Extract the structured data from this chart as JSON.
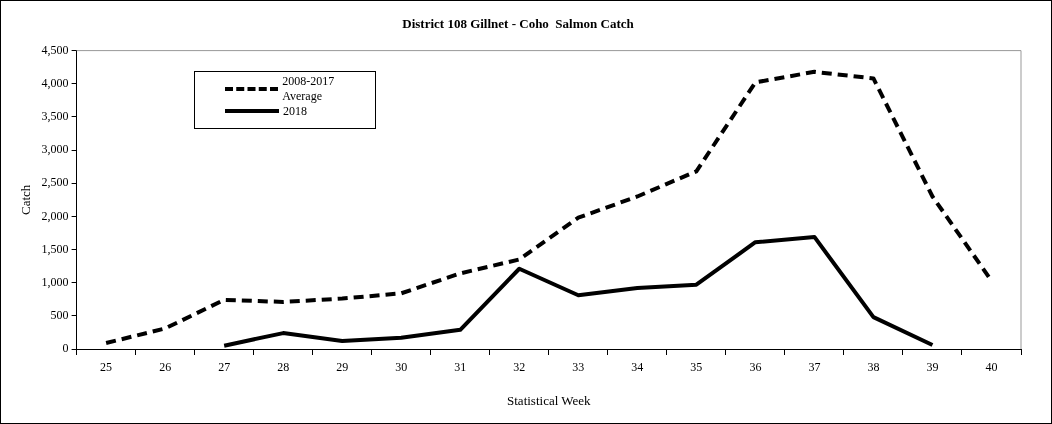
{
  "chart_data": {
    "type": "line",
    "title": "District 108 Gillnet - Coho  Salmon Catch",
    "xlabel": "Statistical Week",
    "ylabel": "Catch",
    "categories": [
      "25",
      "26",
      "27",
      "28",
      "29",
      "30",
      "31",
      "32",
      "33",
      "34",
      "35",
      "36",
      "37",
      "38",
      "39",
      "40"
    ],
    "series": [
      {
        "name": "2008-2017 Average",
        "color": "#000000",
        "line_style": "dashed",
        "values": [
          90,
          310,
          740,
          710,
          760,
          840,
          1140,
          1350,
          1980,
          2300,
          2680,
          4020,
          4180,
          4080,
          2300,
          1030
        ]
      },
      {
        "name": "2018",
        "color": "#000000",
        "line_style": "solid",
        "values": [
          null,
          null,
          50,
          240,
          120,
          170,
          290,
          1210,
          810,
          920,
          970,
          1610,
          1690,
          480,
          60,
          null
        ]
      }
    ],
    "ylim": [
      0,
      4500
    ],
    "yticks": [
      {
        "value": 0,
        "label": "0"
      },
      {
        "value": 500,
        "label": "500"
      },
      {
        "value": 1000,
        "label": "1,000"
      },
      {
        "value": 1500,
        "label": "1,500"
      },
      {
        "value": 2000,
        "label": "2,000"
      },
      {
        "value": 2500,
        "label": "2,500"
      },
      {
        "value": 3000,
        "label": "3,000"
      },
      {
        "value": 3500,
        "label": "3,500"
      },
      {
        "value": 4000,
        "label": "4,000"
      },
      {
        "value": 4500,
        "label": "4,500"
      }
    ],
    "grid": false,
    "legend": "top left",
    "marker": "none"
  }
}
